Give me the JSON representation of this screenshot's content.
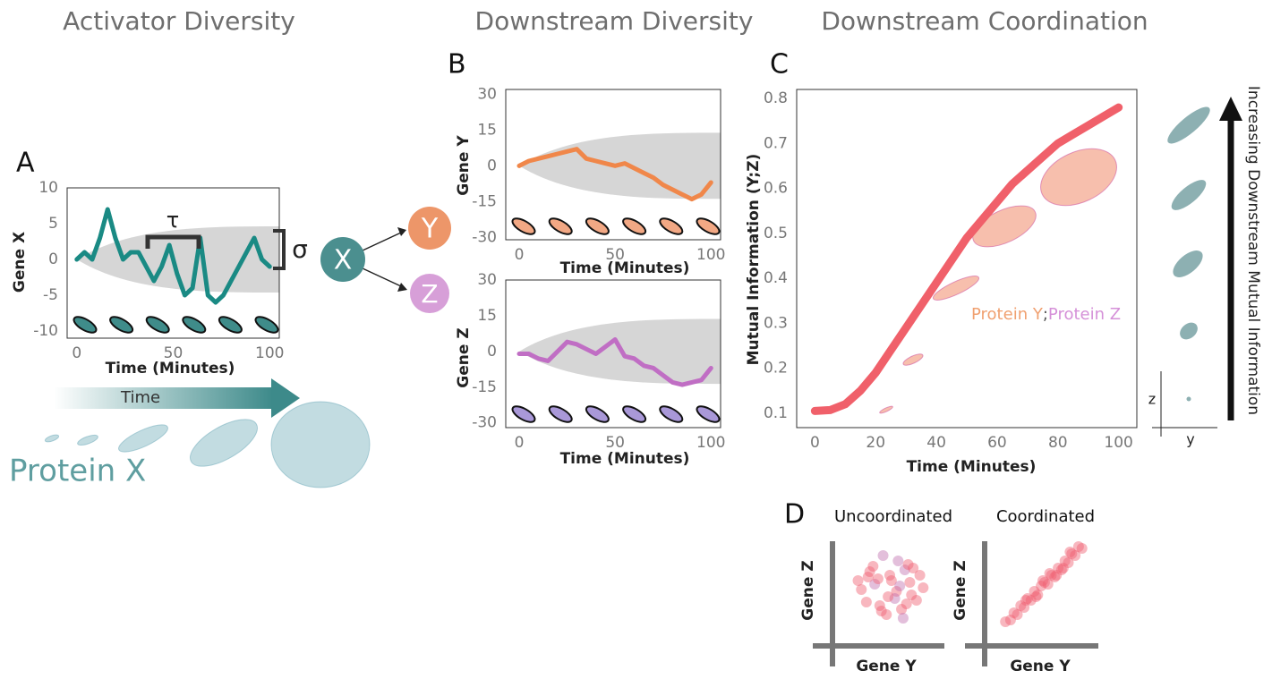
{
  "headers": [
    "Activator Diversity",
    "Downstream Diversity",
    "Downstream Coordination"
  ],
  "panels": [
    "A",
    "B",
    "C",
    "D"
  ],
  "nodes": [
    "X",
    "Y",
    "Z"
  ],
  "labels": {
    "time_arrow": "Time",
    "protein": "Protein X",
    "arrow_text": "Increasing Downstream Mutual Information",
    "inset_axes": [
      "z",
      "y"
    ]
  },
  "chart_data": [
    {
      "type": "line",
      "ylabel": "Gene X",
      "xlabel": "Time (Minutes)",
      "color": "#1a8a84",
      "annotations": [
        "τ",
        "σ"
      ],
      "x": [
        0,
        4,
        8,
        12,
        16,
        20,
        24,
        28,
        32,
        36,
        40,
        44,
        48,
        52,
        56,
        60,
        64,
        68,
        72,
        76,
        80,
        84,
        88,
        92,
        96,
        100
      ],
      "values": [
        0,
        1,
        0,
        3,
        7,
        3,
        0,
        1,
        1,
        -1,
        -3,
        -1,
        2,
        -2,
        -5,
        -4,
        3,
        -5,
        -6,
        -5,
        -3,
        -1,
        1,
        3,
        0,
        -1
      ],
      "xlim": [
        -5,
        105
      ],
      "ylim": [
        -11,
        10
      ],
      "xticks": [
        0,
        50,
        100
      ],
      "yticks": [
        10,
        5,
        0,
        -5,
        -10
      ]
    },
    {
      "type": "line",
      "ylabel": "Gene Y",
      "xlabel": "Time (Minutes)",
      "color": "#f0874a",
      "x": [
        0,
        5,
        10,
        15,
        20,
        25,
        30,
        35,
        40,
        45,
        50,
        55,
        60,
        65,
        70,
        75,
        80,
        85,
        90,
        95,
        100
      ],
      "values": [
        0,
        2,
        3,
        4,
        5,
        6,
        7,
        3,
        2,
        1,
        0,
        1,
        -1,
        -3,
        -5,
        -8,
        -10,
        -12,
        -14,
        -12,
        -7
      ],
      "xlim": [
        -7,
        105
      ],
      "ylim": [
        -31,
        32
      ],
      "xticks": [
        0,
        50,
        100
      ],
      "yticks": [
        30,
        15,
        0,
        -15,
        -30
      ]
    },
    {
      "type": "line",
      "ylabel": "Gene Z",
      "xlabel": "Time (Minutes)",
      "color": "#c06ec4",
      "x": [
        0,
        5,
        10,
        15,
        20,
        25,
        30,
        35,
        40,
        45,
        50,
        55,
        60,
        65,
        70,
        75,
        80,
        85,
        90,
        95,
        100
      ],
      "values": [
        -1,
        -1,
        -3,
        -4,
        0,
        4,
        3,
        1,
        -1,
        2,
        5,
        -2,
        -3,
        -6,
        -7,
        -10,
        -13,
        -14,
        -13,
        -12,
        -7
      ],
      "xlim": [
        -7,
        105
      ],
      "ylim": [
        -32,
        30
      ],
      "xticks": [
        0,
        50,
        100
      ],
      "yticks": [
        30,
        15,
        0,
        -15,
        -30
      ]
    },
    {
      "type": "line",
      "ylabel": "Mutual Information (Y;Z)",
      "xlabel": "Time (Minutes)",
      "color": "#f0606a",
      "annotations": [
        "Protein Y",
        ";",
        "Protein Z"
      ],
      "annotation_colors": [
        "#f0a070",
        "#555555",
        "#d590d8"
      ],
      "x": [
        0,
        5,
        10,
        15,
        20,
        25,
        30,
        35,
        40,
        45,
        50,
        55,
        60,
        65,
        70,
        75,
        80,
        85,
        90,
        95,
        100
      ],
      "values": [
        0.105,
        0.107,
        0.12,
        0.15,
        0.19,
        0.24,
        0.29,
        0.34,
        0.39,
        0.44,
        0.49,
        0.53,
        0.57,
        0.61,
        0.64,
        0.67,
        0.7,
        0.72,
        0.74,
        0.76,
        0.78
      ],
      "xlim": [
        -6,
        106
      ],
      "ylim": [
        0.068,
        0.82
      ],
      "xticks": [
        0,
        20,
        40,
        60,
        80,
        100
      ],
      "yticks": [
        0.1,
        0.2,
        0.3,
        0.4,
        0.5,
        0.6,
        0.7,
        0.8
      ]
    },
    {
      "type": "scatter",
      "title": "Uncoordinated",
      "xlabel": "Gene Y",
      "ylabel": "Gene Z",
      "color": "#f06070",
      "x": [
        0.1,
        -1.2,
        1.3,
        0.5,
        -0.6,
        1.8,
        -1.7,
        0.9,
        -0.2,
        0.4,
        1.1,
        -0.9,
        -1.4,
        0.7,
        1.6,
        -0.4,
        0.0,
        -1.0,
        1.2,
        0.3,
        -0.7,
        2.0,
        -1.9,
        0.8,
        -0.1,
        1.4,
        -1.3,
        0.6,
        -0.5,
        1.0
      ],
      "values": [
        0.3,
        0.8,
        -0.5,
        1.4,
        -1.1,
        0.6,
        -0.2,
        0.9,
        -1.6,
        -0.3,
        1.2,
        0.1,
        -0.9,
        -1.3,
        -0.8,
        1.7,
        0.6,
        1.1,
        0.2,
        -0.7,
        0.4,
        -0.1,
        0.3,
        -1.8,
        -0.6,
        1.0,
        0.5,
        0.0,
        -1.4,
        -1.0
      ],
      "xlim": [
        -3,
        3
      ],
      "ylim": [
        -3,
        3
      ]
    },
    {
      "type": "scatter",
      "title": "Coordinated",
      "xlabel": "Gene Y",
      "ylabel": "Gene Z",
      "color": "#f06070",
      "x": [
        -2.2,
        -1.9,
        -1.7,
        -1.5,
        -1.3,
        -1.1,
        -0.9,
        -0.7,
        -0.5,
        -0.3,
        -0.1,
        0.1,
        0.3,
        0.5,
        0.7,
        0.9,
        1.1,
        1.3,
        1.5,
        1.7,
        1.9,
        2.1,
        2.3,
        -1.0,
        0.0,
        0.8,
        1.6,
        -0.4,
        0.4,
        1.2
      ],
      "values": [
        -2.0,
        -1.9,
        -1.5,
        -1.6,
        -1.1,
        -1.2,
        -0.7,
        -0.8,
        -0.3,
        -0.5,
        0.0,
        0.2,
        0.1,
        0.6,
        0.5,
        1.0,
        0.9,
        1.4,
        1.3,
        1.8,
        1.7,
        2.2,
        2.1,
        -0.8,
        0.3,
        0.6,
        1.9,
        -0.6,
        0.7,
        1.0
      ],
      "xlim": [
        -3,
        3
      ],
      "ylim": [
        -3,
        3
      ]
    }
  ]
}
